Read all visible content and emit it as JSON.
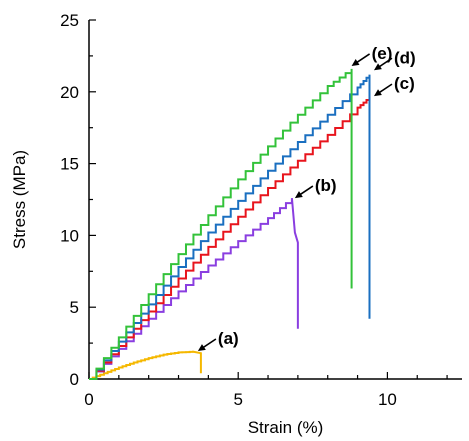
{
  "chart_data": {
    "type": "line",
    "xlabel": "Strain (%)",
    "ylabel": "Stress (MPa)",
    "xlim": [
      0,
      12.5
    ],
    "ylim": [
      0,
      25
    ],
    "xticks": [
      0,
      5,
      10
    ],
    "yticks": [
      0,
      5,
      10,
      15,
      20,
      25
    ],
    "grid": false,
    "series": [
      {
        "label": "(a)",
        "color": "#f5b800",
        "x": [
          0,
          0.5,
          1.0,
          1.5,
          2.0,
          2.5,
          3.0,
          3.5,
          3.75,
          3.75
        ],
        "y": [
          0,
          0.4,
          0.8,
          1.15,
          1.45,
          1.7,
          1.85,
          1.9,
          1.8,
          0.4
        ],
        "label_point": [
          3.65,
          1.95
        ]
      },
      {
        "label": "(b)",
        "color": "#8a3ee0",
        "x": [
          0,
          1.0,
          2.0,
          3.0,
          4.0,
          5.0,
          6.0,
          6.8,
          6.9,
          7.0,
          7.0
        ],
        "y": [
          0,
          2.1,
          4.2,
          6.1,
          7.9,
          9.6,
          11.2,
          12.6,
          10.2,
          9.5,
          3.5
        ],
        "label_point": [
          6.9,
          12.6
        ]
      },
      {
        "label": "(c)",
        "color": "#e8141c",
        "x": [
          0,
          1.0,
          2.0,
          3.0,
          4.0,
          5.0,
          6.0,
          7.0,
          8.0,
          9.0,
          9.4,
          9.4
        ],
        "y": [
          0,
          2.3,
          4.7,
          7.0,
          9.2,
          11.3,
          13.3,
          15.2,
          17.0,
          18.9,
          19.6,
          19.6
        ],
        "label_point": [
          9.55,
          19.7
        ]
      },
      {
        "label": "(d)",
        "color": "#1a6fc0",
        "x": [
          0,
          1.0,
          2.0,
          3.0,
          4.0,
          5.0,
          6.0,
          7.0,
          8.0,
          9.0,
          9.4,
          9.4
        ],
        "y": [
          0,
          2.6,
          5.2,
          7.8,
          10.2,
          12.4,
          14.5,
          16.5,
          18.4,
          20.3,
          21.2,
          4.2
        ],
        "label_point": [
          9.55,
          21.5
        ]
      },
      {
        "label": "(e)",
        "color": "#33c23a",
        "x": [
          0,
          1.0,
          2.0,
          3.0,
          4.0,
          5.0,
          6.0,
          7.0,
          8.0,
          8.8,
          8.8
        ],
        "y": [
          0,
          2.9,
          5.9,
          8.7,
          11.4,
          13.9,
          16.2,
          18.4,
          20.4,
          21.6,
          6.3
        ],
        "label_point": [
          8.8,
          21.8
        ]
      }
    ]
  }
}
